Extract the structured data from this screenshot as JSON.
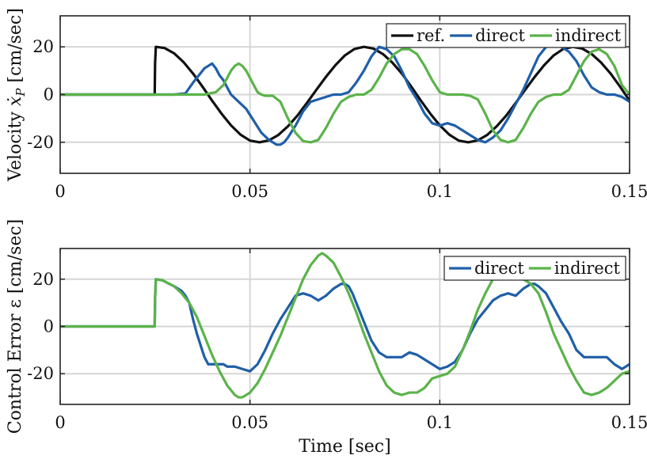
{
  "chart_data": [
    {
      "type": "line",
      "xlabel": "",
      "ylabel": "Velocity ẋ_P [cm/sec]",
      "ylabel_parts": {
        "prefix": "Velocity ",
        "symbol": "ẋ",
        "subscript": "P",
        "suffix": " [cm/sec]"
      },
      "xlim": [
        0,
        0.15
      ],
      "ylim": [
        -33,
        33
      ],
      "xticks": [
        0,
        0.05,
        0.1,
        0.15
      ],
      "xtick_labels": [
        "0",
        "0.05",
        "0.1",
        "0.15"
      ],
      "yticks": [
        -20,
        0,
        20
      ],
      "ytick_labels": [
        "-20",
        "0",
        "20"
      ],
      "grid": true,
      "legend": "top-right",
      "series": [
        {
          "name": "ref.",
          "color": "#111111",
          "x": [
            0,
            0.0249,
            0.025,
            0.0252,
            0.0275,
            0.03,
            0.0325,
            0.035,
            0.0375,
            0.04,
            0.0425,
            0.045,
            0.0475,
            0.05,
            0.0525,
            0.055,
            0.0575,
            0.06,
            0.0625,
            0.065,
            0.0675,
            0.07,
            0.0725,
            0.075,
            0.0775,
            0.08,
            0.0825,
            0.085,
            0.0875,
            0.09,
            0.0925,
            0.095,
            0.0975,
            0.1,
            0.1025,
            0.105,
            0.1075,
            0.11,
            0.1125,
            0.115,
            0.1175,
            0.12,
            0.1225,
            0.125,
            0.1275,
            0.13,
            0.1325,
            0.135,
            0.1375,
            0.14,
            0.1425,
            0.145,
            0.1475,
            0.15
          ],
          "y": [
            0,
            0,
            13,
            20,
            19.5,
            17.3,
            13.6,
            8.8,
            3.3,
            -2.5,
            -8.0,
            -12.9,
            -16.8,
            -19.3,
            -20.0,
            -19.2,
            -16.9,
            -13.3,
            -8.8,
            -3.5,
            2.0,
            7.4,
            12.3,
            16.4,
            19.1,
            20.0,
            19.3,
            17.0,
            13.4,
            8.8,
            3.3,
            -2.5,
            -8.0,
            -12.9,
            -16.8,
            -19.3,
            -20.0,
            -19.2,
            -16.9,
            -13.3,
            -8.8,
            -3.5,
            2.0,
            7.4,
            12.3,
            16.4,
            19.1,
            20.0,
            19.3,
            17.0,
            13.4,
            8.8,
            3.3,
            -2.5
          ]
        },
        {
          "name": "direct",
          "color": "#1f5fa8",
          "x": [
            0,
            0.03,
            0.033,
            0.035,
            0.036,
            0.037,
            0.038,
            0.039,
            0.04,
            0.041,
            0.042,
            0.043,
            0.044,
            0.045,
            0.047,
            0.049,
            0.051,
            0.053,
            0.055,
            0.057,
            0.058,
            0.059,
            0.06,
            0.062,
            0.064,
            0.066,
            0.068,
            0.07,
            0.072,
            0.074,
            0.076,
            0.078,
            0.08,
            0.082,
            0.084,
            0.086,
            0.088,
            0.09,
            0.092,
            0.094,
            0.096,
            0.098,
            0.1,
            0.102,
            0.104,
            0.106,
            0.108,
            0.11,
            0.112,
            0.114,
            0.116,
            0.118,
            0.12,
            0.122,
            0.124,
            0.126,
            0.128,
            0.13,
            0.132,
            0.134,
            0.136,
            0.138,
            0.14,
            0.142,
            0.144,
            0.146,
            0.148,
            0.15
          ],
          "y": [
            0,
            0,
            0.5,
            5,
            7,
            9,
            11,
            12,
            13,
            11,
            8,
            6,
            3,
            0,
            -3,
            -6,
            -11,
            -16,
            -19,
            -21,
            -21,
            -20,
            -18,
            -13,
            -7,
            -3,
            -2,
            -1,
            0,
            0,
            1,
            5,
            10,
            16,
            20,
            19,
            16,
            10,
            3,
            -2,
            -8,
            -12,
            -13,
            -12,
            -13,
            -15,
            -17,
            -19,
            -20,
            -18,
            -15,
            -10,
            -4,
            2,
            9,
            16,
            20,
            21,
            20,
            18,
            14,
            8,
            3,
            1,
            0,
            0,
            -1,
            -3
          ]
        },
        {
          "name": "indirect",
          "color": "#5bb34a",
          "x": [
            0,
            0.038,
            0.041,
            0.043,
            0.044,
            0.045,
            0.046,
            0.047,
            0.048,
            0.049,
            0.05,
            0.051,
            0.052,
            0.053,
            0.054,
            0.055,
            0.056,
            0.058,
            0.06,
            0.062,
            0.064,
            0.066,
            0.068,
            0.07,
            0.072,
            0.074,
            0.076,
            0.078,
            0.08,
            0.082,
            0.084,
            0.086,
            0.088,
            0.09,
            0.092,
            0.094,
            0.096,
            0.098,
            0.1,
            0.102,
            0.104,
            0.106,
            0.108,
            0.11,
            0.112,
            0.114,
            0.116,
            0.118,
            0.12,
            0.122,
            0.124,
            0.126,
            0.128,
            0.13,
            0.132,
            0.134,
            0.136,
            0.138,
            0.14,
            0.142,
            0.144,
            0.146,
            0.148,
            0.15
          ],
          "y": [
            0,
            0,
            1,
            4,
            7,
            10,
            12,
            13,
            12,
            10,
            7,
            4,
            1,
            0,
            -0.5,
            -0.5,
            -0.5,
            -3,
            -10,
            -16,
            -19.5,
            -20,
            -19,
            -14,
            -8,
            -3,
            -1,
            0,
            0,
            2,
            7,
            13,
            17,
            19,
            19,
            17,
            12,
            6,
            1,
            0,
            0,
            0,
            -0.5,
            -2,
            -8,
            -15,
            -19,
            -20,
            -19,
            -14,
            -8,
            -3,
            -1,
            0,
            0,
            2,
            8,
            14,
            18,
            19,
            17,
            12,
            4,
            0
          ]
        }
      ]
    },
    {
      "type": "line",
      "xlabel": "Time [sec]",
      "ylabel": "Control Error ε [cm/sec]",
      "xlim": [
        0,
        0.15
      ],
      "ylim": [
        -33,
        33
      ],
      "xticks": [
        0,
        0.05,
        0.1,
        0.15
      ],
      "xtick_labels": [
        "0",
        "0.05",
        "0.1",
        "0.15"
      ],
      "yticks": [
        -20,
        0,
        20
      ],
      "ytick_labels": [
        "-20",
        "0",
        "20"
      ],
      "grid": true,
      "legend": "top-right",
      "series": [
        {
          "name": "direct",
          "color": "#1f5fa8",
          "x": [
            0,
            0.0249,
            0.025,
            0.0252,
            0.027,
            0.03,
            0.032,
            0.033,
            0.034,
            0.035,
            0.036,
            0.037,
            0.038,
            0.039,
            0.04,
            0.041,
            0.042,
            0.043,
            0.044,
            0.046,
            0.048,
            0.05,
            0.052,
            0.054,
            0.056,
            0.058,
            0.06,
            0.062,
            0.064,
            0.066,
            0.068,
            0.07,
            0.072,
            0.074,
            0.075,
            0.076,
            0.077,
            0.078,
            0.08,
            0.082,
            0.084,
            0.086,
            0.088,
            0.09,
            0.092,
            0.094,
            0.096,
            0.098,
            0.1,
            0.102,
            0.104,
            0.106,
            0.108,
            0.11,
            0.112,
            0.114,
            0.116,
            0.118,
            0.12,
            0.122,
            0.124,
            0.125,
            0.126,
            0.128,
            0.13,
            0.132,
            0.134,
            0.136,
            0.138,
            0.14,
            0.142,
            0.144,
            0.146,
            0.148,
            0.15
          ],
          "y": [
            0,
            0,
            12,
            20,
            19.5,
            17,
            15,
            13,
            10,
            3,
            -3,
            -8,
            -13,
            -16,
            -16,
            -16,
            -16,
            -16,
            -17,
            -17,
            -18,
            -19,
            -16,
            -10,
            -3,
            3,
            8,
            13,
            14,
            13,
            11,
            13,
            16,
            18,
            18,
            17,
            14,
            10,
            2,
            -6,
            -11,
            -13,
            -13,
            -13,
            -11,
            -12,
            -14,
            -16,
            -18,
            -17,
            -15,
            -10,
            -3,
            3,
            7,
            11,
            13,
            14,
            13,
            16,
            18,
            18,
            17,
            14,
            8,
            2,
            -3,
            -10,
            -13,
            -13,
            -13,
            -13,
            -16,
            -18,
            -16
          ]
        },
        {
          "name": "indirect",
          "color": "#5bb34a",
          "x": [
            0,
            0.0249,
            0.025,
            0.0252,
            0.027,
            0.03,
            0.032,
            0.034,
            0.036,
            0.038,
            0.04,
            0.042,
            0.044,
            0.046,
            0.047,
            0.048,
            0.05,
            0.052,
            0.054,
            0.056,
            0.058,
            0.06,
            0.062,
            0.064,
            0.066,
            0.068,
            0.069,
            0.07,
            0.072,
            0.074,
            0.076,
            0.078,
            0.08,
            0.082,
            0.084,
            0.086,
            0.088,
            0.09,
            0.092,
            0.094,
            0.096,
            0.098,
            0.1,
            0.102,
            0.104,
            0.106,
            0.108,
            0.11,
            0.112,
            0.114,
            0.116,
            0.118,
            0.12,
            0.122,
            0.124,
            0.126,
            0.128,
            0.13,
            0.132,
            0.134,
            0.136,
            0.138,
            0.14,
            0.142,
            0.144,
            0.146,
            0.148,
            0.15
          ],
          "y": [
            0,
            0,
            12,
            20,
            19.5,
            17,
            14,
            10,
            4,
            -4,
            -12,
            -19,
            -25,
            -29,
            -30,
            -30,
            -28,
            -24,
            -18,
            -11,
            -4,
            4,
            12,
            20,
            26,
            30,
            31,
            30,
            27,
            21,
            14,
            6,
            -3,
            -11,
            -19,
            -25,
            -28,
            -29,
            -28,
            -28,
            -26,
            -22,
            -21,
            -20,
            -17,
            -10,
            -2,
            7,
            14,
            20,
            22,
            22,
            21,
            20,
            18,
            14,
            6,
            -3,
            -10,
            -17,
            -23,
            -28,
            -29,
            -28,
            -26,
            -23,
            -20,
            -19
          ]
        }
      ]
    }
  ]
}
